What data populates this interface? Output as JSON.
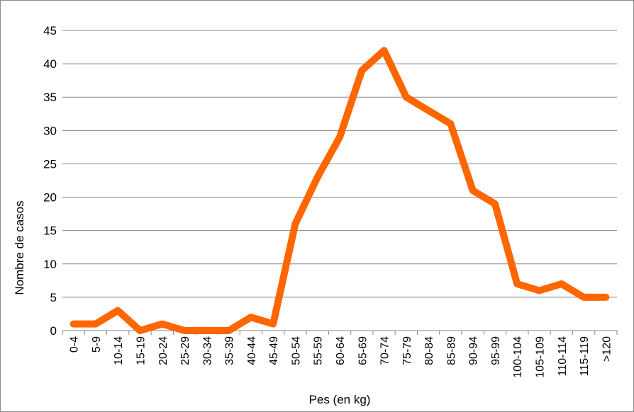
{
  "chart_data": {
    "type": "line",
    "title": "",
    "xlabel": "Pes (en kg)",
    "ylabel": "Nombre de casos",
    "ylim": [
      0,
      45
    ],
    "yticks": [
      0,
      5,
      10,
      15,
      20,
      25,
      30,
      35,
      40,
      45
    ],
    "grid": true,
    "legend": "none",
    "line_color": "#ff6600",
    "categories": [
      "0-4",
      "5-9",
      "10-14",
      "15-19",
      "20-24",
      "25-29",
      "30-34",
      "35-39",
      "40-44",
      "45-49",
      "50-54",
      "55-59",
      "60-64",
      "65-69",
      "70-74",
      "75-79",
      "80-84",
      "85-89",
      "90-94",
      "95-99",
      "100-104",
      "105-109",
      "110-114",
      "115-119",
      ">120"
    ],
    "series": [
      {
        "values": [
          1,
          1,
          3,
          0,
          1,
          0,
          0,
          0,
          2,
          1,
          16,
          23,
          29,
          39,
          42,
          35,
          33,
          31,
          21,
          19,
          7,
          6,
          7,
          5,
          5
        ]
      }
    ]
  }
}
